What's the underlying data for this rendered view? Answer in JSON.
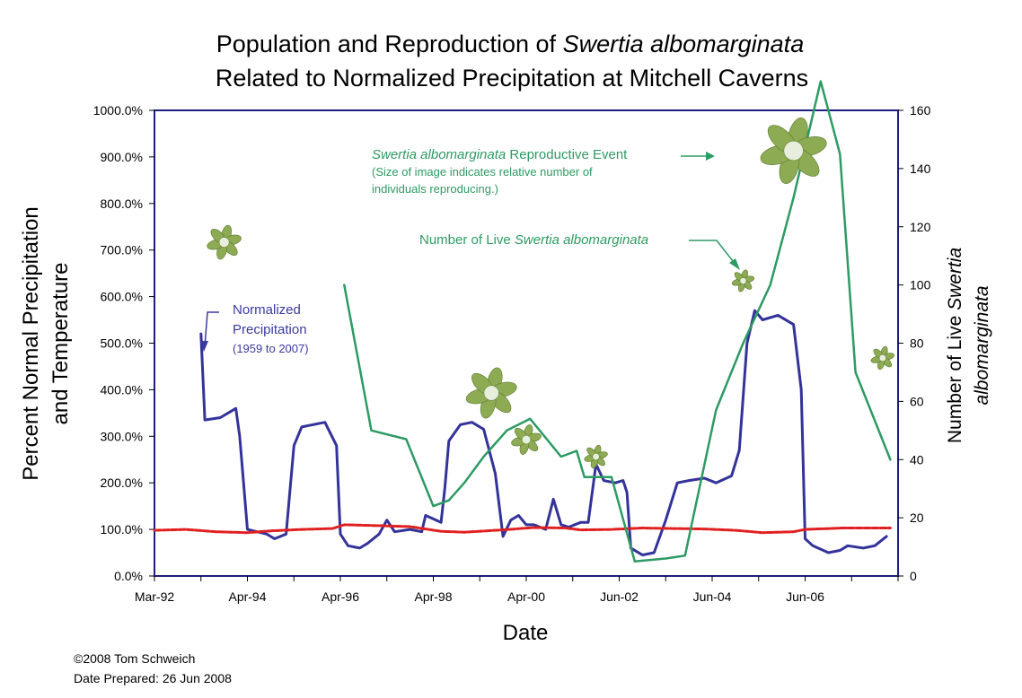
{
  "title": {
    "line1_prefix": "Population and Reproduction of ",
    "line1_species": "Swertia albomarginata",
    "line2": "Related to Normalized Precipitation at Mitchell Caverns"
  },
  "axes": {
    "xlabel": "Date",
    "ylabel_left": [
      "Percent Normal Precipitation",
      "and Temperature"
    ],
    "ylabel_right_prefix": "Number of Live ",
    "ylabel_right_species_1": "Swertia",
    "ylabel_right_species_2": "albomarginata"
  },
  "annotations": {
    "reproductive": {
      "species": "Swertia albomarginata",
      "label": " Reproductive Event",
      "note_line1": "(Size of image indicates relative number of",
      "note_line2": "individuals reproducing.)"
    },
    "live": {
      "prefix": "Number of Live ",
      "species": "Swertia albomarginata"
    },
    "precip": {
      "line1": "Normalized",
      "line2": "Precipitation",
      "line3": "(1959 to 2007)"
    }
  },
  "footer": {
    "copyright": "©2008 Tom Schweich",
    "prepared": "Date Prepared: 26 Jun 2008"
  },
  "colors": {
    "precipitation": "#33339a",
    "temperature": "#e02020",
    "live_count": "#2e9a63",
    "flower": "#8cab52",
    "plot_border": "#1e1e80"
  },
  "icons": {
    "reproductive_event": "flower-icon"
  },
  "chart_data": {
    "type": "line",
    "x_ticks": [
      "Mar-92",
      "Apr-94",
      "Apr-96",
      "Apr-98",
      "Apr-00",
      "Jun-02",
      "Jun-04",
      "Jun-06"
    ],
    "x_range": [
      "1992-03",
      "2008-03"
    ],
    "ylim_left": [
      0,
      1000
    ],
    "yticks_left": [
      "0.0%",
      "100.0%",
      "200.0%",
      "300.0%",
      "400.0%",
      "500.0%",
      "600.0%",
      "700.0%",
      "800.0%",
      "900.0%",
      "1000.0%"
    ],
    "ylim_right": [
      0,
      160
    ],
    "yticks_right": [
      "0",
      "20",
      "40",
      "60",
      "80",
      "100",
      "120",
      "140",
      "160"
    ],
    "grid": false,
    "series": [
      {
        "name": "Normalized Precipitation (1959 to 2007)",
        "axis": "left",
        "points": [
          [
            "1993-03",
            520
          ],
          [
            "1993-04",
            335
          ],
          [
            "1993-08",
            340
          ],
          [
            "1993-12",
            360
          ],
          [
            "1994-01",
            300
          ],
          [
            "1994-03",
            100
          ],
          [
            "1994-08",
            90
          ],
          [
            "1994-10",
            80
          ],
          [
            "1995-01",
            90
          ],
          [
            "1995-03",
            280
          ],
          [
            "1995-05",
            320
          ],
          [
            "1995-11",
            330
          ],
          [
            "1996-02",
            280
          ],
          [
            "1996-03",
            90
          ],
          [
            "1996-05",
            65
          ],
          [
            "1996-08",
            60
          ],
          [
            "1996-10",
            70
          ],
          [
            "1997-01",
            90
          ],
          [
            "1997-03",
            120
          ],
          [
            "1997-05",
            95
          ],
          [
            "1997-09",
            100
          ],
          [
            "1997-12",
            95
          ],
          [
            "1998-01",
            130
          ],
          [
            "1998-05",
            115
          ],
          [
            "1998-06",
            190
          ],
          [
            "1998-07",
            290
          ],
          [
            "1998-10",
            325
          ],
          [
            "1999-01",
            330
          ],
          [
            "1999-04",
            315
          ],
          [
            "1999-07",
            220
          ],
          [
            "1999-09",
            85
          ],
          [
            "1999-11",
            120
          ],
          [
            "2000-01",
            130
          ],
          [
            "2000-03",
            110
          ],
          [
            "2000-05",
            110
          ],
          [
            "2000-08",
            100
          ],
          [
            "2000-10",
            165
          ],
          [
            "2000-12",
            110
          ],
          [
            "2001-02",
            105
          ],
          [
            "2001-05",
            115
          ],
          [
            "2001-07",
            115
          ],
          [
            "2001-09",
            240
          ],
          [
            "2001-11",
            205
          ],
          [
            "2002-02",
            200
          ],
          [
            "2002-04",
            205
          ],
          [
            "2002-05",
            180
          ],
          [
            "2002-06",
            60
          ],
          [
            "2002-09",
            45
          ],
          [
            "2002-12",
            50
          ],
          [
            "2003-03",
            120
          ],
          [
            "2003-06",
            200
          ],
          [
            "2003-09",
            205
          ],
          [
            "2004-01",
            210
          ],
          [
            "2004-04",
            200
          ],
          [
            "2004-08",
            215
          ],
          [
            "2004-10",
            270
          ],
          [
            "2004-12",
            500
          ],
          [
            "2005-02",
            570
          ],
          [
            "2005-04",
            550
          ],
          [
            "2005-08",
            560
          ],
          [
            "2005-12",
            540
          ],
          [
            "2006-02",
            400
          ],
          [
            "2006-03",
            80
          ],
          [
            "2006-05",
            65
          ],
          [
            "2006-09",
            50
          ],
          [
            "2006-12",
            55
          ],
          [
            "2007-02",
            65
          ],
          [
            "2007-06",
            60
          ],
          [
            "2007-09",
            65
          ],
          [
            "2007-12",
            85
          ]
        ]
      },
      {
        "name": "Temperature",
        "axis": "left",
        "points": [
          [
            "1992-03",
            98
          ],
          [
            "1992-11",
            100
          ],
          [
            "1993-07",
            95
          ],
          [
            "1994-03",
            93
          ],
          [
            "1994-09",
            97
          ],
          [
            "1995-05",
            100
          ],
          [
            "1996-01",
            102
          ],
          [
            "1996-04",
            110
          ],
          [
            "1997-01",
            108
          ],
          [
            "1997-09",
            106
          ],
          [
            "1998-05",
            96
          ],
          [
            "1998-11",
            94
          ],
          [
            "1999-09",
            99
          ],
          [
            "2000-05",
            104
          ],
          [
            "2001-01",
            103
          ],
          [
            "2001-05",
            99
          ],
          [
            "2002-01",
            100
          ],
          [
            "2002-09",
            103
          ],
          [
            "2003-05",
            102
          ],
          [
            "2004-01",
            101
          ],
          [
            "2004-09",
            98
          ],
          [
            "2005-04",
            93
          ],
          [
            "2005-12",
            95
          ],
          [
            "2006-03",
            100
          ],
          [
            "2007-01",
            103
          ],
          [
            "2008-01",
            103
          ]
        ]
      },
      {
        "name": "Number of Live Swertia albomarginata",
        "axis": "right",
        "points": [
          [
            "1996-04",
            100
          ],
          [
            "1996-11",
            50
          ],
          [
            "1997-08",
            47
          ],
          [
            "1998-03",
            24
          ],
          [
            "1998-07",
            26
          ],
          [
            "1998-11",
            32
          ],
          [
            "1999-04",
            41
          ],
          [
            "1999-10",
            50
          ],
          [
            "2000-04",
            54
          ],
          [
            "2000-12",
            41
          ],
          [
            "2001-04",
            43
          ],
          [
            "2001-06",
            34
          ],
          [
            "2002-01",
            34
          ],
          [
            "2002-07",
            5
          ],
          [
            "2003-03",
            6
          ],
          [
            "2003-08",
            7
          ],
          [
            "2004-04",
            57
          ],
          [
            "2004-11",
            80
          ],
          [
            "2005-06",
            100
          ],
          [
            "2005-12",
            130
          ],
          [
            "2006-07",
            170
          ],
          [
            "2006-12",
            145
          ],
          [
            "2007-04",
            70
          ],
          [
            "2008-01",
            40
          ]
        ]
      }
    ],
    "reproductive_events": [
      {
        "date": "1993-09",
        "relative_size": 0.42
      },
      {
        "date": "1999-06",
        "relative_size": 0.72
      },
      {
        "date": "2000-03",
        "relative_size": 0.34
      },
      {
        "date": "2001-09",
        "relative_size": 0.22
      },
      {
        "date": "2004-11",
        "relative_size": 0.2
      },
      {
        "date": "2005-12",
        "relative_size": 1.0
      },
      {
        "date": "2007-11",
        "relative_size": 0.22
      }
    ]
  }
}
